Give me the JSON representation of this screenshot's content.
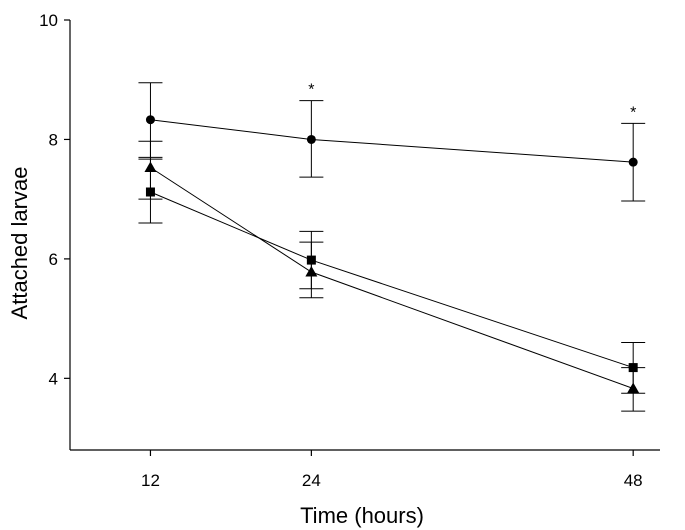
{
  "chart_data": {
    "type": "line",
    "xlabel": "Time (hours)",
    "ylabel": "Attached larvae",
    "x": [
      12,
      24,
      48
    ],
    "xlim": [
      6,
      50
    ],
    "ylim": [
      2.8,
      10
    ],
    "yticks": [
      4,
      6,
      8,
      10
    ],
    "grid": false,
    "series": [
      {
        "marker": "circle",
        "values": [
          8.33,
          8.0,
          7.62
        ],
        "err_low": [
          7.7,
          7.37,
          6.97
        ],
        "err_high": [
          8.95,
          8.65,
          8.27
        ]
      },
      {
        "marker": "square",
        "values": [
          7.12,
          5.98,
          4.18
        ],
        "err_low": [
          6.6,
          5.5,
          3.75
        ],
        "err_high": [
          7.67,
          6.46,
          4.6
        ]
      },
      {
        "marker": "triangle",
        "values": [
          7.53,
          5.78,
          3.83
        ],
        "err_low": [
          7.0,
          5.35,
          3.45
        ],
        "err_high": [
          7.97,
          6.28,
          4.18
        ]
      }
    ],
    "annotations": [
      {
        "x": 24,
        "text": "*"
      },
      {
        "x": 48,
        "text": "*"
      }
    ]
  }
}
